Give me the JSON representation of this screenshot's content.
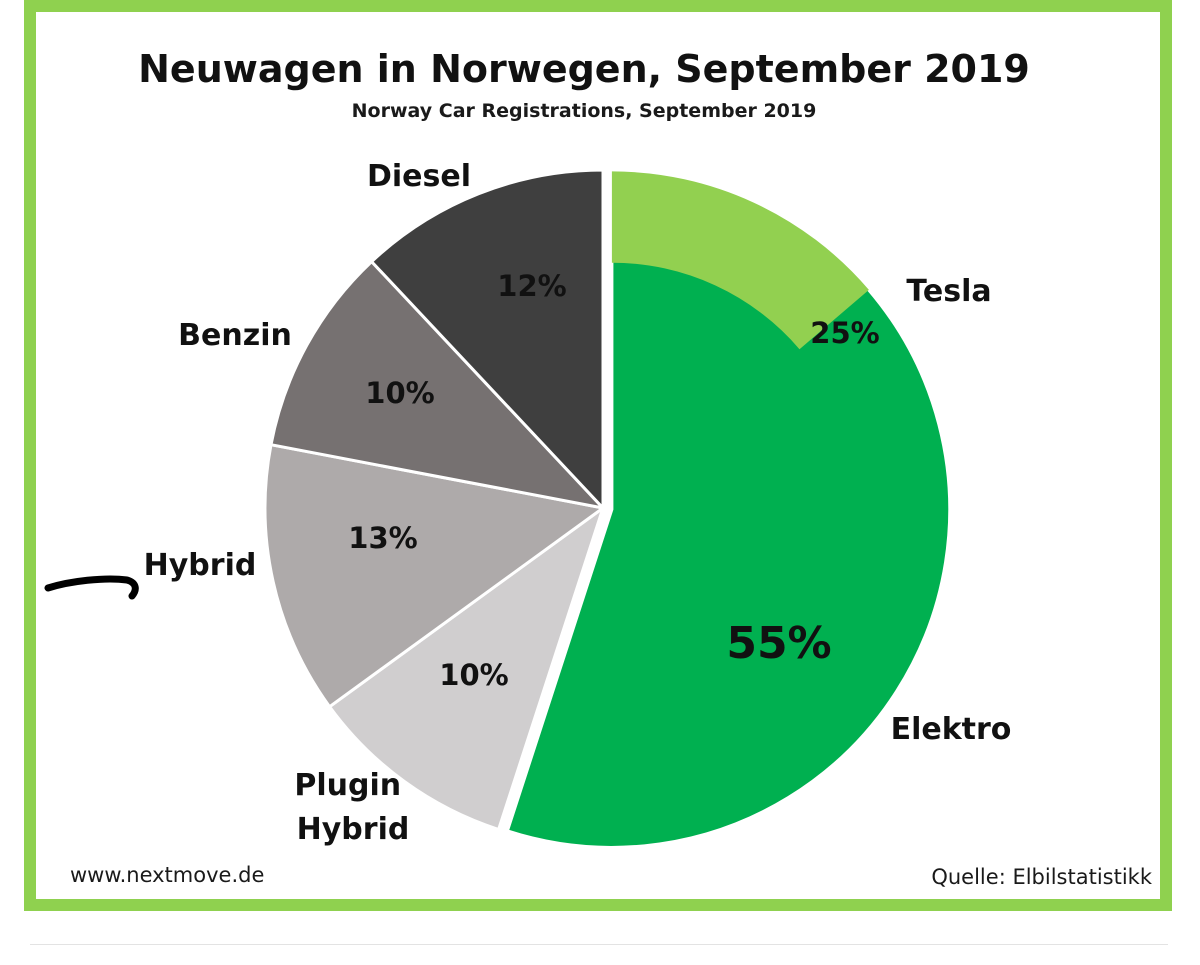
{
  "chart_data": {
    "type": "pie",
    "title": "Neuwagen in Norwegen, September 2019",
    "subtitle": "Norway Car Registrations, September 2019",
    "slices": [
      {
        "label": "Elektro",
        "value": 55,
        "value_label": "55%",
        "color": "#00b050"
      },
      {
        "label": "Plugin Hybrid",
        "value": 10,
        "value_label": "10%",
        "color": "#d0cecf"
      },
      {
        "label": "Hybrid",
        "value": 13,
        "value_label": "13%",
        "color": "#aeaaaa"
      },
      {
        "label": "Benzin",
        "value": 10,
        "value_label": "10%",
        "color": "#767171"
      },
      {
        "label": "Diesel",
        "value": 12,
        "value_label": "12%",
        "color": "#3f3f3f"
      }
    ],
    "sub_slice": {
      "label": "Tesla",
      "value": 25,
      "value_label": "25%",
      "parent": "Elektro",
      "color": "#92d050"
    },
    "source": "Quelle: Elbilstatistikk",
    "website": "www.nextmove.de"
  }
}
